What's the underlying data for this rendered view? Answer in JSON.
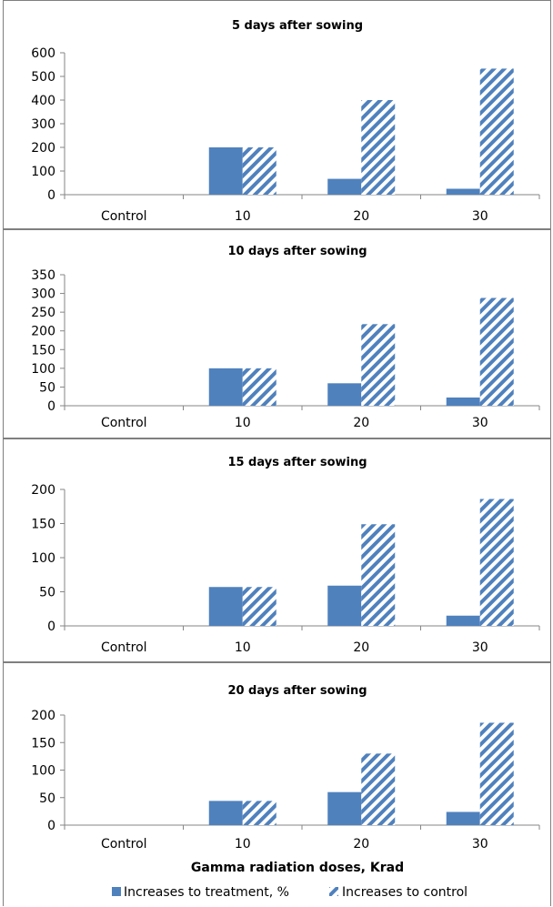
{
  "chart_data": [
    {
      "type": "bar",
      "title": "5 days after sowing",
      "categories": [
        "Control",
        "10",
        "20",
        "30"
      ],
      "ylim": [
        0,
        600
      ],
      "yticks": [
        0,
        100,
        200,
        300,
        400,
        500,
        600
      ],
      "series": [
        {
          "name": "Increases to treatment, %",
          "values": [
            0,
            200,
            67,
            25
          ]
        },
        {
          "name": "Increases to control",
          "values": [
            0,
            200,
            400,
            533
          ]
        }
      ]
    },
    {
      "type": "bar",
      "title": "10 days after sowing",
      "categories": [
        "Control",
        "10",
        "20",
        "30"
      ],
      "ylim": [
        0,
        350
      ],
      "yticks": [
        0,
        50,
        100,
        150,
        200,
        250,
        300,
        350
      ],
      "series": [
        {
          "name": "Increases to treatment, %",
          "values": [
            0,
            100,
            60,
            22
          ]
        },
        {
          "name": "Increases to control",
          "values": [
            0,
            100,
            218,
            288
          ]
        }
      ]
    },
    {
      "type": "bar",
      "title": "15 days after sowing",
      "categories": [
        "Control",
        "10",
        "20",
        "30"
      ],
      "ylim": [
        0,
        200
      ],
      "yticks": [
        0,
        50,
        100,
        150,
        200
      ],
      "series": [
        {
          "name": "Increases to treatment, %",
          "values": [
            0,
            57,
            59,
            15
          ]
        },
        {
          "name": "Increases to control",
          "values": [
            0,
            57,
            149,
            186
          ]
        }
      ]
    },
    {
      "type": "bar",
      "title": "20 days after sowing",
      "xlabel": "Gamma radiation doses, Krad",
      "categories": [
        "Control",
        "10",
        "20",
        "30"
      ],
      "ylim": [
        0,
        200
      ],
      "yticks": [
        0,
        50,
        100,
        150,
        200
      ],
      "legend_position": "bottom",
      "series": [
        {
          "name": "Increases to treatment, %",
          "values": [
            0,
            44,
            60,
            24
          ]
        },
        {
          "name": "Increases to control",
          "values": [
            0,
            44,
            130,
            186
          ]
        }
      ]
    }
  ],
  "colors": {
    "solid": "#4f81bd",
    "hatch": "#4f81bd",
    "axis": "#868686"
  }
}
